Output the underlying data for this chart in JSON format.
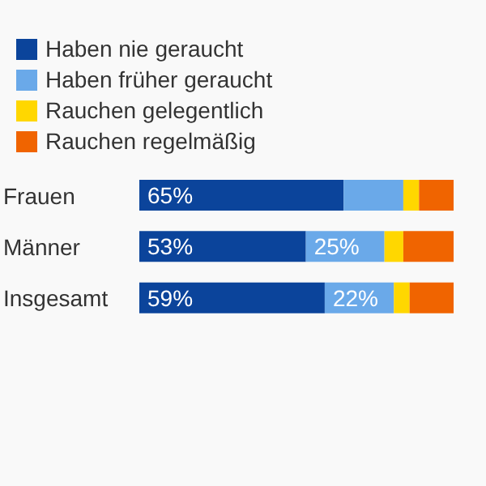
{
  "chart_data": {
    "type": "bar",
    "orientation": "horizontal",
    "stacked": true,
    "categories": [
      "Frauen",
      "Männer",
      "Insgesamt"
    ],
    "series": [
      {
        "name": "Haben nie geraucht",
        "color": "#0b449b",
        "values": [
          65,
          53,
          59
        ],
        "value_labels": [
          "65%",
          "53%",
          "59%"
        ]
      },
      {
        "name": "Haben früher geraucht",
        "color": "#6aa9e9",
        "values": [
          19,
          25,
          22
        ],
        "value_labels": [
          null,
          "25%",
          "22%"
        ]
      },
      {
        "name": "Rauchen gelegentlich",
        "color": "#ffd700",
        "values": [
          5,
          6,
          5
        ]
      },
      {
        "name": "Rauchen regelmäßig",
        "color": "#f06400",
        "values": [
          11,
          16,
          14
        ]
      }
    ],
    "xlim": [
      0,
      100
    ],
    "tick_labels": "y",
    "legend": "top"
  }
}
